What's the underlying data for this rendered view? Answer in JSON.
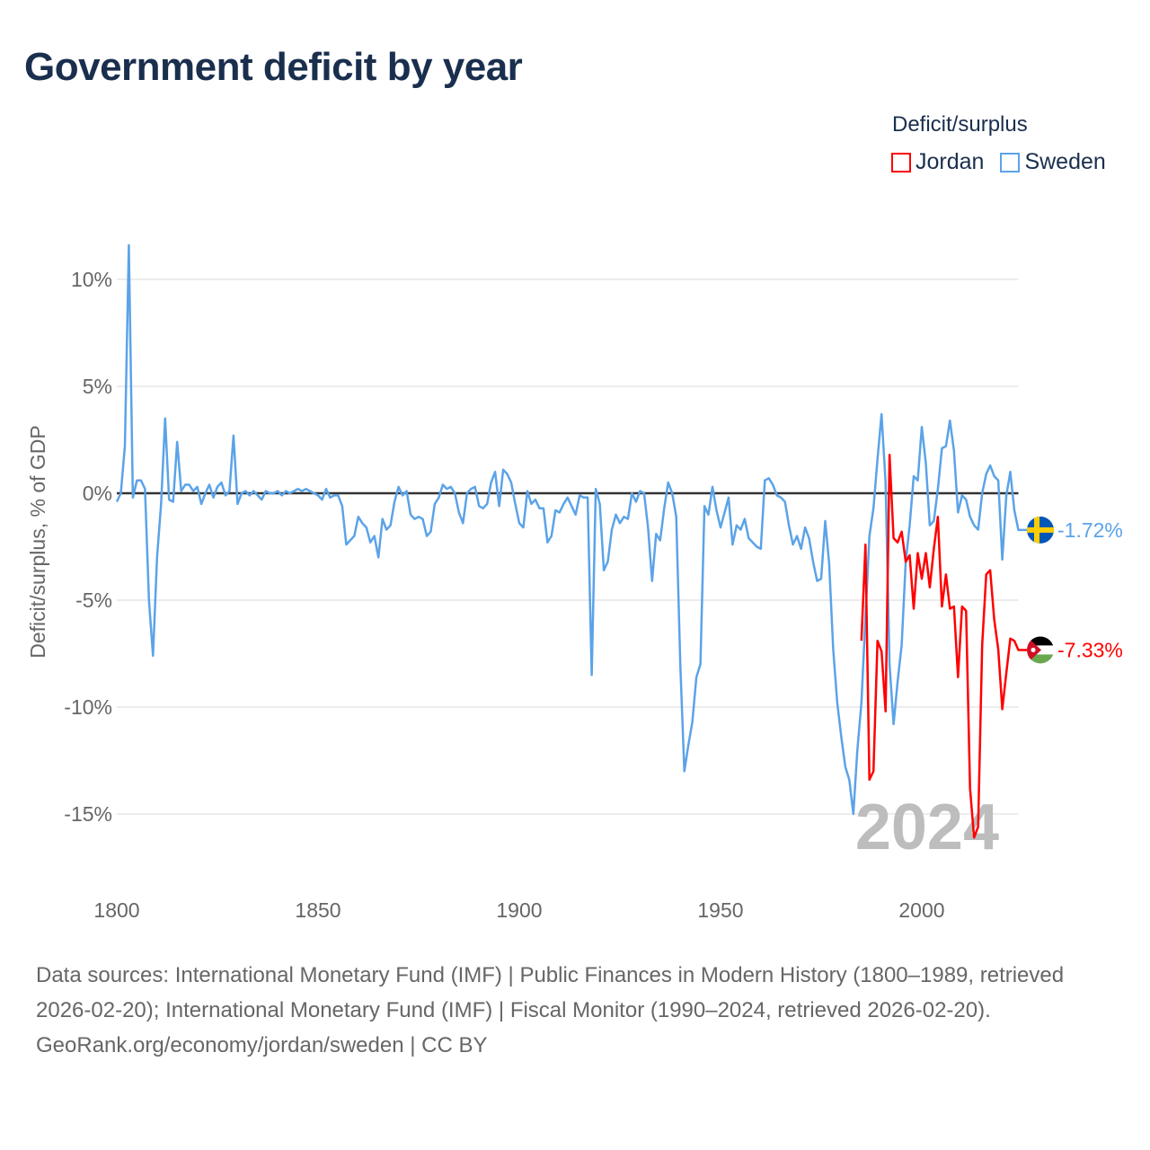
{
  "title": "Government deficit by year",
  "legend": {
    "title": "Deficit/surplus",
    "items": [
      {
        "name": "Jordan",
        "color": "#ff0000"
      },
      {
        "name": "Sweden",
        "color": "#5ba3e8"
      }
    ]
  },
  "footer": {
    "sources": "Data sources: International Monetary Fund (IMF) | Public Finances in Modern History (1800–1989, retrieved 2026-02-20); International Monetary Fund (IMF) | Fiscal Monitor (1990–2024, retrieved 2026-02-20).",
    "credit": "GeoRank.org/economy/jordan/sweden | CC BY"
  },
  "chart_data": {
    "type": "line",
    "title": "Government deficit by year",
    "xlabel": "",
    "ylabel": "Deficit/surplus, % of GDP",
    "xlim": [
      1800,
      2024
    ],
    "ylim": [
      -17,
      12
    ],
    "x_ticks": [
      1800,
      1850,
      1900,
      1950,
      2000
    ],
    "x_tick_labels": [
      "1800",
      "1850",
      "1900",
      "1950",
      "2000"
    ],
    "y_ticks": [
      10,
      5,
      0,
      -5,
      -10,
      -15
    ],
    "y_tick_labels": [
      "10%",
      "5%",
      "0%",
      "-5%",
      "-10%",
      "-15%"
    ],
    "watermark_year": "2024",
    "grid": true,
    "legend_position": "top-right",
    "series": [
      {
        "name": "Sweden",
        "color": "#5ba3e8",
        "end_label": "-1.72%",
        "start_year": 1800,
        "values": [
          -0.4,
          0,
          2.2,
          11.6,
          -0.2,
          0.6,
          0.6,
          0.2,
          -5,
          -7.6,
          -3,
          -0.5,
          3.5,
          -0.3,
          -0.4,
          2.4,
          0.1,
          0.4,
          0.4,
          0.1,
          0.3,
          -0.5,
          0,
          0.4,
          -0.2,
          0.3,
          0.5,
          -0.1,
          0.1,
          2.7,
          -0.5,
          0,
          0.1,
          -0.1,
          0.1,
          -0.1,
          -0.3,
          0.1,
          0,
          0,
          0.1,
          -0.1,
          0.1,
          0,
          0.1,
          0.2,
          0.1,
          0.2,
          0.1,
          0,
          -0.1,
          -0.3,
          0.2,
          -0.2,
          -0.1,
          -0.1,
          -0.6,
          -2.4,
          -2.2,
          -2.0,
          -1.1,
          -1.4,
          -1.6,
          -2.3,
          -2.0,
          -3.0,
          -1.2,
          -1.7,
          -1.5,
          -0.4,
          0.3,
          -0.1,
          0.1,
          -1.0,
          -1.2,
          -1.1,
          -1.2,
          -2.0,
          -1.8,
          -0.5,
          -0.2,
          0.4,
          0.2,
          0.3,
          0,
          -0.9,
          -1.4,
          0,
          0.2,
          0.3,
          -0.6,
          -0.7,
          -0.5,
          0.5,
          1.0,
          -0.6,
          1.1,
          0.9,
          0.5,
          -0.5,
          -1.4,
          -1.6,
          0.1,
          -0.5,
          -0.3,
          -0.7,
          -0.7,
          -2.3,
          -2.0,
          -0.8,
          -0.9,
          -0.5,
          -0.2,
          -0.6,
          -1.0,
          -0.1,
          -0.2,
          -0.2,
          -8.5,
          0.2,
          -0.5,
          -3.6,
          -3.2,
          -1.7,
          -1.0,
          -1.4,
          -1.1,
          -1.2,
          0,
          -0.4,
          0.1,
          0,
          -1.6,
          -4.1,
          -1.9,
          -2.2,
          -0.7,
          0.5,
          0,
          -1.1,
          -8,
          -13,
          -11.8,
          -10.7,
          -8.6,
          -8,
          -0.6,
          -1,
          0.3,
          -0.8,
          -1.6,
          -0.9,
          -0.2,
          -2.4,
          -1.5,
          -1.7,
          -1.2,
          -2.1,
          -2.3,
          -2.5,
          -2.6,
          0.6,
          0.7,
          0.4,
          -0.1,
          -0.2,
          -0.4,
          -1.5,
          -2.4,
          -2.0,
          -2.6,
          -1.6,
          -2.1,
          -3.2,
          -4.1,
          -4.0,
          -1.3,
          -3.3,
          -7.3,
          -9.8,
          -11.4,
          -12.8,
          -13.4,
          -15.0,
          -12,
          -9.8,
          -5.8,
          -2.0,
          -0.7,
          1.6,
          3.7,
          0.5,
          -8,
          -10.8,
          -8.8,
          -7.1,
          -3.2,
          -1.5,
          0.8,
          0.6,
          3.1,
          1.4,
          -1.5,
          -1.3,
          0.2,
          2.1,
          2.2,
          3.4,
          2.0,
          -0.9,
          -0.1,
          -0.3,
          -1.1,
          -1.5,
          -1.7,
          0,
          0.9,
          1.3,
          0.8,
          0.6,
          -3.1,
          -0.1,
          1.0,
          -0.8,
          -1.72
        ]
      },
      {
        "name": "Jordan",
        "color": "#ff0000",
        "end_label": "-7.33%",
        "start_year": 1985,
        "values": [
          -6.9,
          -2.4,
          -13.4,
          -13.0,
          -6.9,
          -7.4,
          -10.2,
          1.8,
          -2.1,
          -2.3,
          -1.8,
          -3.2,
          -2.9,
          -5.4,
          -2.8,
          -4.0,
          -2.8,
          -4.4,
          -2.6,
          -1.1,
          -5.3,
          -3.8,
          -5.4,
          -5.3,
          -8.6,
          -5.3,
          -5.5,
          -13.8,
          -16.1,
          -15.6,
          -7.1,
          -3.8,
          -3.6,
          -5.9,
          -7.3,
          -10.1,
          -8.4,
          -6.8,
          -6.9,
          -7.33
        ]
      }
    ]
  }
}
